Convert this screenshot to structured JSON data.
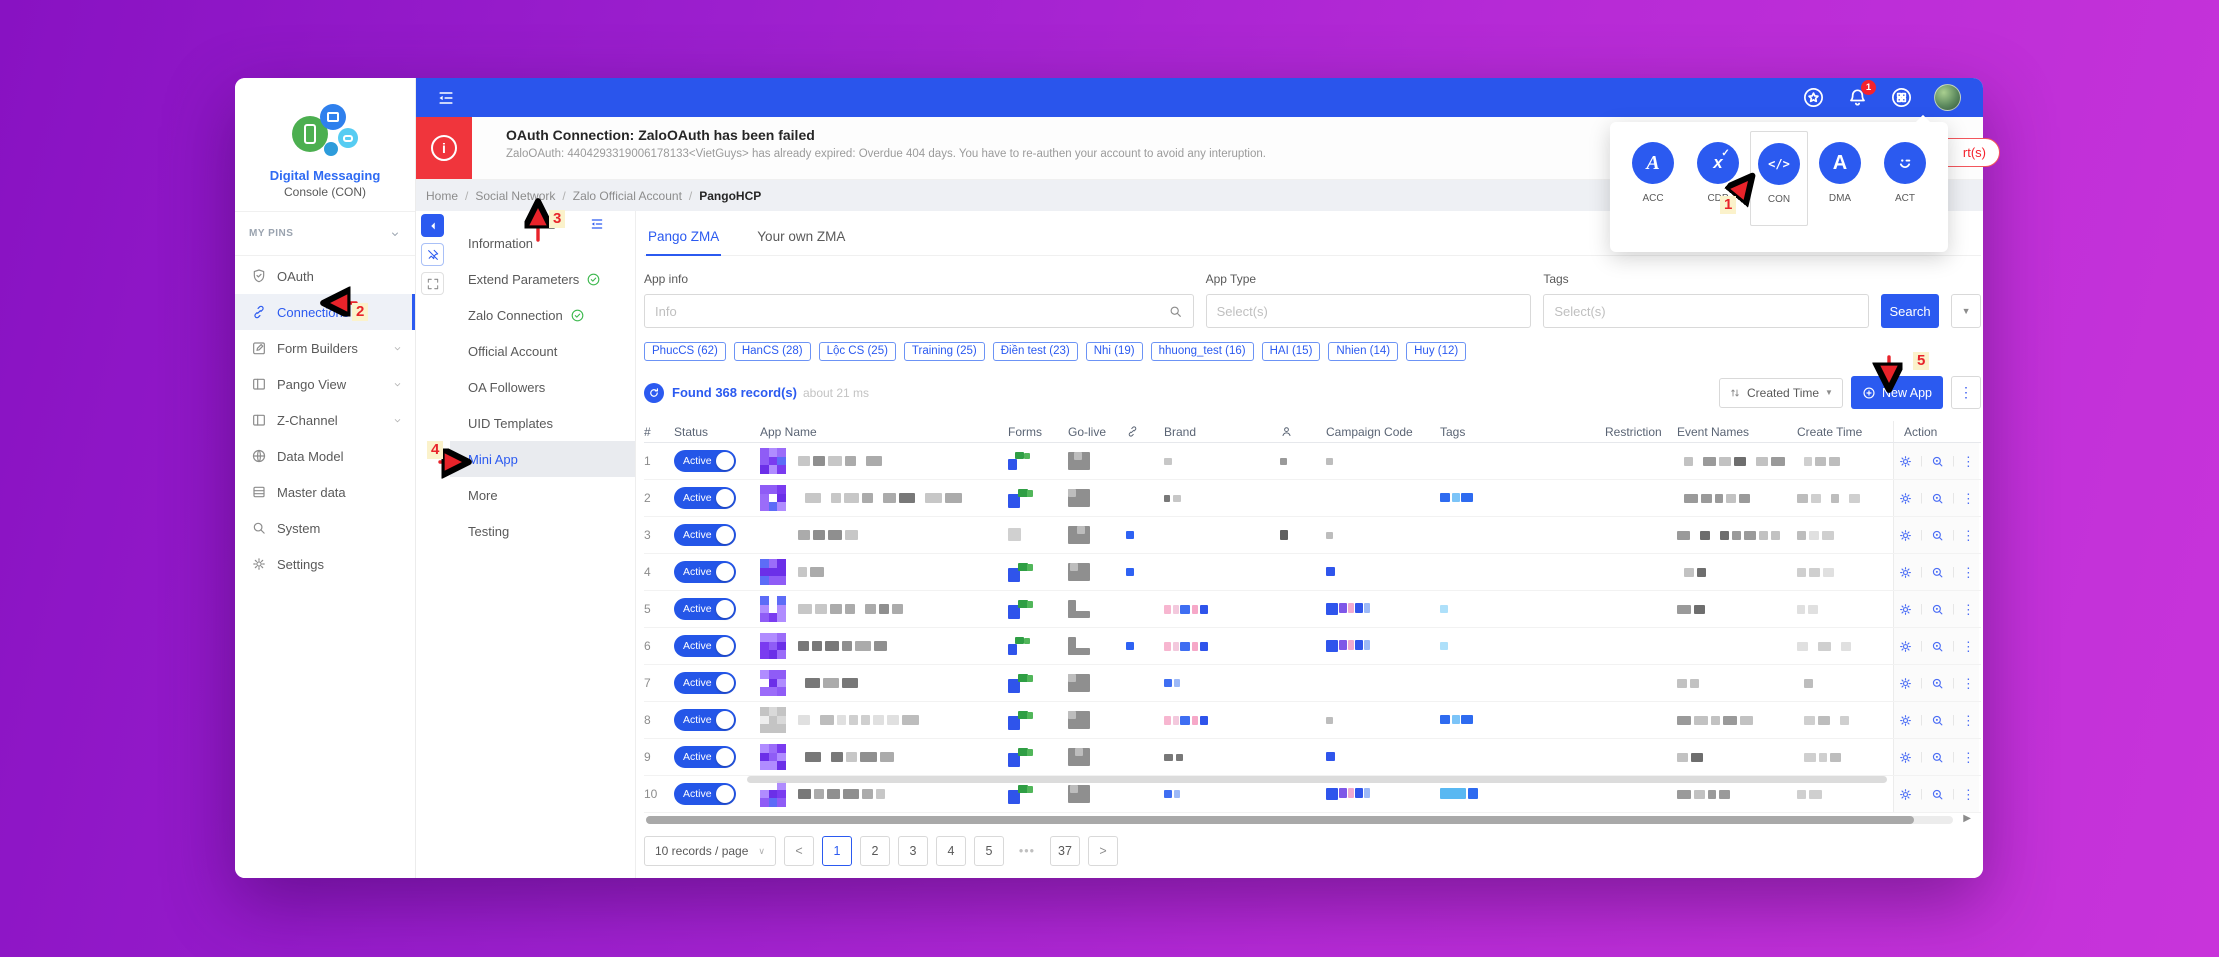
{
  "brand": {
    "title": "Digital Messaging",
    "subtitle": "Console (CON)"
  },
  "sidebar": {
    "pins_label": "MY PINS",
    "items": [
      {
        "label": "OAuth",
        "icon": "shield"
      },
      {
        "label": "Connections",
        "icon": "link",
        "active": true
      },
      {
        "label": "Form Builders",
        "icon": "form",
        "chevron": true
      },
      {
        "label": "Pango View",
        "icon": "layout",
        "chevron": true
      },
      {
        "label": "Z-Channel",
        "icon": "layout",
        "chevron": true
      },
      {
        "label": "Data Model",
        "icon": "globe"
      },
      {
        "label": "Master data",
        "icon": "table"
      },
      {
        "label": "System",
        "icon": "search"
      },
      {
        "label": "Settings",
        "icon": "gear"
      }
    ]
  },
  "topbar": {
    "bell_badge": "1"
  },
  "apps_menu": {
    "items": [
      {
        "label": "ACC",
        "glyph": "acc"
      },
      {
        "label": "CDP",
        "glyph": "cdp"
      },
      {
        "label": "CON",
        "glyph": "con",
        "selected": true
      },
      {
        "label": "DMA",
        "glyph": "dma"
      },
      {
        "label": "ACT",
        "glyph": "act"
      }
    ],
    "alerts_partial": "rt(s)"
  },
  "alert": {
    "title": "OAuth Connection: ZaloOAuth has been failed",
    "message": "ZaloOAuth: 4404293319006178133<VietGuys> has already expired: Overdue 404 days. You have to re-authen your account to avoid any interuption."
  },
  "breadcrumb": [
    "Home",
    "Social Network",
    "Zalo Official Account",
    "PangoHCP"
  ],
  "inner_nav": [
    {
      "label": "Information"
    },
    {
      "label": "Extend Parameters",
      "checked": true
    },
    {
      "label": "Zalo Connection",
      "checked": true
    },
    {
      "label": "Official Account"
    },
    {
      "label": "OA Followers"
    },
    {
      "label": "UID Templates"
    },
    {
      "label": "Mini App",
      "active": true
    },
    {
      "label": "More"
    },
    {
      "label": "Testing"
    }
  ],
  "tabs": [
    {
      "label": "Pango ZMA",
      "active": true
    },
    {
      "label": "Your own ZMA"
    }
  ],
  "filters": {
    "app_info_label": "App info",
    "app_info_placeholder": "Info",
    "app_type_label": "App Type",
    "app_type_placeholder": "Select(s)",
    "tags_label": "Tags",
    "tags_placeholder": "Select(s)",
    "search_label": "Search"
  },
  "chips": [
    "PhucCS (62)",
    "HanCS (28)",
    "Lộc CS (25)",
    "Training (25)",
    "Điền test (23)",
    "Nhi (19)",
    "hhuong_test (16)",
    "HAI (15)",
    "Nhien (14)",
    "Huy (12)"
  ],
  "results": {
    "found": "Found 368 record(s)",
    "timing": "about 21 ms",
    "sort_label": "Created Time",
    "new_app_label": "New App"
  },
  "table": {
    "headers": [
      {
        "label": "#"
      },
      {
        "label": "Status"
      },
      {
        "label": "App Name"
      },
      {
        "label": "Forms"
      },
      {
        "label": "Go-live"
      },
      {
        "icon": "link"
      },
      {
        "label": "Brand"
      },
      {
        "icon": "person"
      },
      {
        "label": "Campaign Code"
      },
      {
        "label": "Tags"
      },
      {
        "label": "Restriction"
      },
      {
        "label": "Event Names"
      },
      {
        "label": "Create Time"
      },
      {
        "label": "Action"
      }
    ],
    "rows": [
      {
        "num": "1",
        "status": "Active",
        "icon": 1,
        "name": 5,
        "forms": 1,
        "golive": 1,
        "link": "",
        "brand": "g",
        "person": "g",
        "campaign": "g",
        "tags": "",
        "events": 6,
        "ctime": 3
      },
      {
        "num": "2",
        "status": "Active",
        "icon": 1,
        "name": 8,
        "forms": 2,
        "golive": 1,
        "link": "",
        "brand": "g",
        "person": "",
        "campaign": "",
        "tags": "blue",
        "events": 5,
        "ctime": 4
      },
      {
        "num": "3",
        "status": "Active",
        "icon": 0,
        "name": 4,
        "forms": 0,
        "golive": 1,
        "link": "b",
        "brand": "",
        "person": "d",
        "campaign": "g",
        "tags": "",
        "events": 7,
        "ctime": 3
      },
      {
        "num": "4",
        "status": "Active",
        "icon": 1,
        "name": 2,
        "forms": 2,
        "golive": 1,
        "link": "b",
        "brand": "",
        "person": "",
        "campaign": "b",
        "tags": "",
        "events": 2,
        "ctime": 3
      },
      {
        "num": "5",
        "status": "Active",
        "icon": 1,
        "name": 7,
        "forms": 2,
        "golive": 2,
        "link": "",
        "brand": "c",
        "person": "",
        "campaign": "c",
        "tags": "c",
        "events": 2,
        "ctime": 2
      },
      {
        "num": "6",
        "status": "Active",
        "icon": 1,
        "name": 6,
        "forms": 1,
        "golive": 2,
        "link": "b",
        "brand": "c",
        "person": "",
        "campaign": "c",
        "tags": "c",
        "events": 0,
        "ctime": 3
      },
      {
        "num": "7",
        "status": "Active",
        "icon": 1,
        "name": 3,
        "forms": 2,
        "golive": 1,
        "link": "",
        "brand": "b",
        "person": "",
        "campaign": "",
        "tags": "",
        "events": 2,
        "ctime": 1
      },
      {
        "num": "8",
        "status": "Active",
        "icon": 2,
        "name": 8,
        "forms": 2,
        "golive": 1,
        "link": "",
        "brand": "c",
        "person": "",
        "campaign": "g",
        "tags": "blue",
        "events": 5,
        "ctime": 3
      },
      {
        "num": "9",
        "status": "Active",
        "icon": 1,
        "name": 5,
        "forms": 2,
        "golive": 1,
        "link": "",
        "brand": "g",
        "person": "",
        "campaign": "b",
        "tags": "",
        "events": 2,
        "ctime": 3
      },
      {
        "num": "10",
        "status": "Active",
        "icon": 1,
        "name": 6,
        "forms": 2,
        "golive": 1,
        "link": "",
        "brand": "b",
        "person": "",
        "campaign": "c",
        "tags": "cyanBig",
        "events": 4,
        "ctime": 2
      }
    ]
  },
  "pagination": {
    "page_size": "10 records / page",
    "prev": "<",
    "next": ">",
    "pages": [
      {
        "label": "1",
        "active": true
      },
      {
        "label": "2"
      },
      {
        "label": "3"
      },
      {
        "label": "4"
      },
      {
        "label": "5"
      },
      {
        "label": "•••",
        "ellipsis": true
      },
      {
        "label": "37"
      }
    ]
  },
  "annotations": [
    "1",
    "2",
    "3",
    "4",
    "5"
  ],
  "colors": {
    "accent": "#2b5af0",
    "alert_red": "#f0353c",
    "annotation_red": "#e8232a",
    "check_green": "#3fb950"
  }
}
